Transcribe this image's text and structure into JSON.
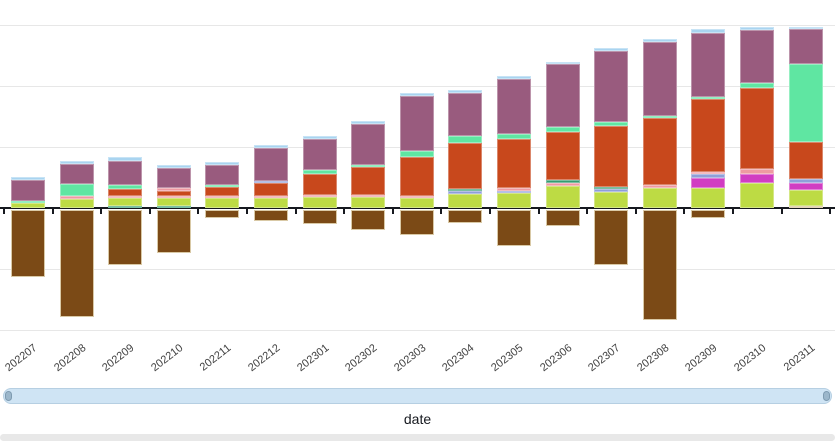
{
  "chart_data": {
    "type": "stacked-bar",
    "title": "",
    "xlabel": "date",
    "ylabel": "",
    "y_axis_labels_visible": false,
    "value_unit": "px (no y-axis tick labels shown; one gridline = 61px)",
    "grid": true,
    "categories": [
      "202207",
      "202208",
      "202209",
      "202210",
      "202211",
      "202212",
      "202301",
      "202302",
      "202303",
      "202304",
      "202305",
      "202306",
      "202307",
      "202308",
      "202309",
      "202310",
      "202311"
    ],
    "series_colors": {
      "yellow_green": "#bddb44",
      "teal": "#359b70",
      "salmon": "#ee9aa2",
      "lavender": "#8f9fd9",
      "magenta": "#d13dc2",
      "orange_red": "#c8481c",
      "mint": "#5fe6a2",
      "purple": "#995b7e",
      "light_blue": "#a9d4f0",
      "tan": "#d5bd93",
      "brown_negative": "#7b4a16"
    },
    "bars": [
      {
        "category": "202207",
        "segments": [
          [
            "yellow_green",
            5
          ],
          [
            "mint",
            2
          ],
          [
            "purple",
            21
          ],
          [
            "light_blue",
            3
          ]
        ],
        "negative_brown": 67
      },
      {
        "category": "202208",
        "segments": [
          [
            "yellow_green",
            9
          ],
          [
            "salmon",
            3
          ],
          [
            "mint",
            12
          ],
          [
            "purple",
            20
          ],
          [
            "light_blue",
            3
          ]
        ],
        "negative_brown": 107
      },
      {
        "category": "202209",
        "segments": [
          [
            "teal",
            2
          ],
          [
            "yellow_green",
            8
          ],
          [
            "salmon",
            2
          ],
          [
            "orange_red",
            7
          ],
          [
            "mint",
            4
          ],
          [
            "purple",
            24
          ],
          [
            "light_blue",
            4
          ]
        ],
        "negative_brown": 55
      },
      {
        "category": "202210",
        "segments": [
          [
            "teal",
            2
          ],
          [
            "yellow_green",
            8
          ],
          [
            "salmon",
            2
          ],
          [
            "orange_red",
            5
          ],
          [
            "salmon",
            3
          ],
          [
            "purple",
            20
          ],
          [
            "light_blue",
            3
          ]
        ],
        "negative_brown": 43
      },
      {
        "category": "202211",
        "segments": [
          [
            "yellow_green",
            10
          ],
          [
            "salmon",
            2
          ],
          [
            "orange_red",
            9
          ],
          [
            "mint",
            2
          ],
          [
            "purple",
            20
          ],
          [
            "light_blue",
            3
          ]
        ],
        "negative_brown": 8
      },
      {
        "category": "202212",
        "segments": [
          [
            "yellow_green",
            10
          ],
          [
            "salmon",
            2
          ],
          [
            "orange_red",
            13
          ],
          [
            "lavender",
            2
          ],
          [
            "purple",
            33
          ],
          [
            "light_blue",
            3
          ]
        ],
        "negative_brown": 11
      },
      {
        "category": "202301",
        "segments": [
          [
            "yellow_green",
            11
          ],
          [
            "salmon",
            2
          ],
          [
            "orange_red",
            21
          ],
          [
            "mint",
            4
          ],
          [
            "purple",
            31
          ],
          [
            "light_blue",
            3
          ]
        ],
        "negative_brown": 14
      },
      {
        "category": "202302",
        "segments": [
          [
            "yellow_green",
            11
          ],
          [
            "salmon",
            2
          ],
          [
            "orange_red",
            28
          ],
          [
            "mint",
            2
          ],
          [
            "purple",
            41
          ],
          [
            "light_blue",
            3
          ]
        ],
        "negative_brown": 20
      },
      {
        "category": "202303",
        "segments": [
          [
            "yellow_green",
            10
          ],
          [
            "salmon",
            2
          ],
          [
            "orange_red",
            39
          ],
          [
            "mint",
            6
          ],
          [
            "purple",
            55
          ],
          [
            "light_blue",
            3
          ]
        ],
        "negative_brown": 25
      },
      {
        "category": "202304",
        "segments": [
          [
            "yellow_green",
            14
          ],
          [
            "lavender",
            3
          ],
          [
            "teal",
            2
          ],
          [
            "orange_red",
            46
          ],
          [
            "mint",
            7
          ],
          [
            "purple",
            43
          ],
          [
            "light_blue",
            3
          ]
        ],
        "negative_brown": 13
      },
      {
        "category": "202305",
        "segments": [
          [
            "yellow_green",
            15
          ],
          [
            "lavender",
            2
          ],
          [
            "salmon",
            3
          ],
          [
            "orange_red",
            49
          ],
          [
            "mint",
            5
          ],
          [
            "purple",
            55
          ],
          [
            "light_blue",
            3
          ]
        ],
        "negative_brown": 36
      },
      {
        "category": "202306",
        "segments": [
          [
            "yellow_green",
            22
          ],
          [
            "salmon",
            3
          ],
          [
            "teal",
            3
          ],
          [
            "orange_red",
            48
          ],
          [
            "mint",
            5
          ],
          [
            "purple",
            63
          ],
          [
            "light_blue",
            2
          ]
        ],
        "negative_brown": 16
      },
      {
        "category": "202307",
        "segments": [
          [
            "yellow_green",
            16
          ],
          [
            "lavender",
            3
          ],
          [
            "teal",
            2
          ],
          [
            "orange_red",
            61
          ],
          [
            "mint",
            4
          ],
          [
            "purple",
            71
          ],
          [
            "light_blue",
            3
          ]
        ],
        "negative_brown": 55
      },
      {
        "category": "202308",
        "segments": [
          [
            "yellow_green",
            20
          ],
          [
            "salmon",
            3
          ],
          [
            "orange_red",
            67
          ],
          [
            "mint",
            2
          ],
          [
            "purple",
            74
          ],
          [
            "light_blue",
            3
          ]
        ],
        "negative_brown": 110
      },
      {
        "category": "202309",
        "segments": [
          [
            "yellow_green",
            20
          ],
          [
            "magenta",
            10
          ],
          [
            "lavender",
            4
          ],
          [
            "salmon",
            2
          ],
          [
            "orange_red",
            73
          ],
          [
            "mint",
            2
          ],
          [
            "purple",
            64
          ],
          [
            "light_blue",
            4
          ]
        ],
        "negative_brown": 8
      },
      {
        "category": "202310",
        "segments": [
          [
            "yellow_green",
            25
          ],
          [
            "magenta",
            9
          ],
          [
            "salmon",
            5
          ],
          [
            "orange_red",
            81
          ],
          [
            "mint",
            5
          ],
          [
            "purple",
            53
          ],
          [
            "light_blue",
            3
          ]
        ],
        "negative_brown": 0
      },
      {
        "category": "202311",
        "segments": [
          [
            "tan",
            2
          ],
          [
            "yellow_green",
            16
          ],
          [
            "magenta",
            7
          ],
          [
            "lavender",
            4
          ],
          [
            "orange_red",
            37
          ],
          [
            "mint",
            78
          ],
          [
            "purple",
            35
          ],
          [
            "light_blue",
            2
          ]
        ],
        "negative_brown": 0
      }
    ]
  },
  "x_axis": {
    "title": "date"
  },
  "date_slider": {
    "left_handle": "slider-handle",
    "right_handle": "slider-handle"
  }
}
